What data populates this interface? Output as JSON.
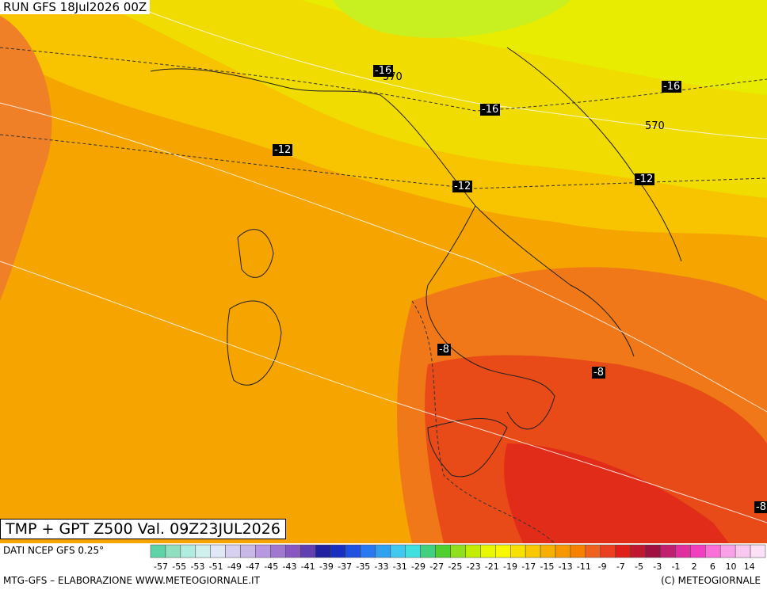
{
  "header": {
    "run": "RUN GFS 18Jul2026 00Z"
  },
  "title": "TMP + GPT Z500 Val. 09Z23JUL2026",
  "source": "DATI NCEP GFS 0.25°",
  "contour_labels": [
    "-16",
    "570",
    "-16",
    "-16",
    "570",
    "-12",
    "-12",
    "-12",
    "-8",
    "-8",
    "-8"
  ],
  "colorbar": {
    "labels": [
      -57,
      -55,
      -53,
      -51,
      -49,
      -47,
      -45,
      -43,
      -41,
      -39,
      -37,
      -35,
      -33,
      -31,
      -29,
      -27,
      -25,
      -23,
      -21,
      -19,
      -17,
      -15,
      -13,
      -11,
      -9,
      -7,
      -5,
      -3,
      -1,
      2,
      6,
      10,
      14
    ],
    "colors": [
      "#5fd3a8",
      "#8fe0c0",
      "#b0ece0",
      "#d0f0f0",
      "#e0e8f8",
      "#d8d0f0",
      "#c8b8e8",
      "#b898e0",
      "#a078d0",
      "#8858c0",
      "#6040b0",
      "#2020a0",
      "#1830c0",
      "#2050e0",
      "#2878f0",
      "#30a0f0",
      "#40c8f0",
      "#40e0e0",
      "#40d080",
      "#50d030",
      "#90e020",
      "#c0f000",
      "#e8f800",
      "#f8f800",
      "#f8e000",
      "#f8c800",
      "#f8b000",
      "#f89800",
      "#f88000",
      "#f06020",
      "#e84020",
      "#e02018",
      "#c01830",
      "#a01040",
      "#c02070",
      "#e030a0",
      "#f040c0",
      "#f870d8",
      "#f8a0e8",
      "#f8c8f0",
      "#fce0f8"
    ]
  },
  "footer": {
    "left": "MTG-GFS – ELABORAZIONE WWW.METEOGIORNALE.IT",
    "right": "(C) METEOGIORNALE"
  }
}
